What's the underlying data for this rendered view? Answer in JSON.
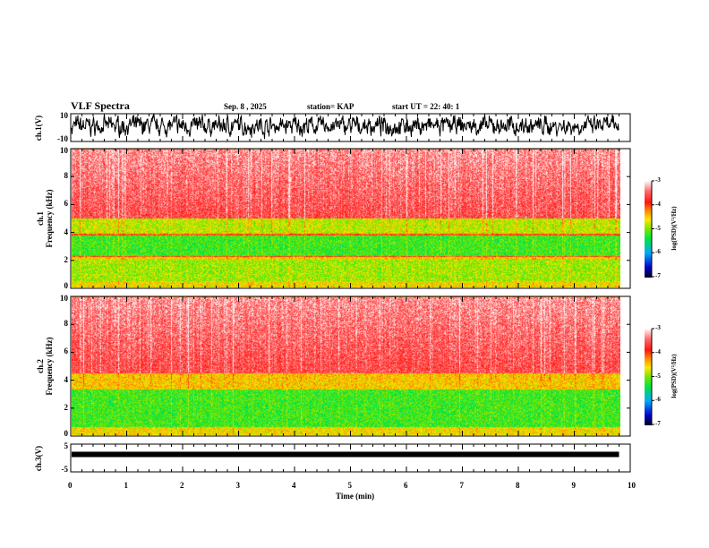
{
  "header": {
    "title": "VLF Spectra",
    "date": "Sep. 8  , 2025",
    "station": "station= KAP",
    "start": "start  UT  =   22: 40: 1"
  },
  "colors": {
    "trace": "#000000",
    "red": "#ff2020",
    "green": "#20e020"
  },
  "chart_data": [
    {
      "type": "line",
      "name": "ch1-waveform",
      "ylabel": "ch.1(V)",
      "ylim": [
        -10,
        10
      ],
      "yticks": [
        "10",
        "-10"
      ],
      "xlim": [
        0,
        10
      ],
      "data_end_min": 9.8
    },
    {
      "type": "heatmap",
      "name": "ch1-spectrogram",
      "ylabel": "ch.1\nFrequency  (kHz)",
      "ylim": [
        0,
        10
      ],
      "yticks": [
        "0",
        "2",
        "4",
        "6",
        "8",
        "10"
      ],
      "xlim": [
        0,
        10
      ],
      "colorbar": {
        "label": "log(PSD)(V²/Hz)",
        "range": [
          -7,
          -3
        ],
        "ticks": [
          "-3",
          "-4",
          "-5",
          "-6",
          "-7"
        ]
      },
      "bands_khz": [
        {
          "range": [
            0,
            0.5
          ],
          "level": -4.6
        },
        {
          "range": [
            0.5,
            2.0
          ],
          "level": -4.9
        },
        {
          "range": [
            2.2,
            2.3
          ],
          "level": -4.0
        },
        {
          "range": [
            2.3,
            3.8
          ],
          "level": -5.2
        },
        {
          "range": [
            3.8,
            3.9
          ],
          "level": -4.0
        },
        {
          "range": [
            4.0,
            5.0
          ],
          "level": -4.8
        },
        {
          "range": [
            5.0,
            10.0
          ],
          "level": -3.6
        }
      ]
    },
    {
      "type": "heatmap",
      "name": "ch2-spectrogram",
      "ylabel": "ch.2\nFrequency  (kHz)",
      "ylim": [
        0,
        10
      ],
      "yticks": [
        "0",
        "2",
        "4",
        "6",
        "8",
        "10"
      ],
      "xlim": [
        0,
        10
      ],
      "colorbar": {
        "label": "log(PSD)(V²/Hz)",
        "range": [
          -7,
          -3
        ],
        "ticks": [
          "-3",
          "-4",
          "-5",
          "-6",
          "-7"
        ]
      },
      "bands_khz": [
        {
          "range": [
            0,
            0.6
          ],
          "level": -4.6
        },
        {
          "range": [
            0.6,
            3.3
          ],
          "level": -5.2
        },
        {
          "range": [
            3.3,
            4.5
          ],
          "level": -4.5
        },
        {
          "range": [
            4.5,
            10.0
          ],
          "level": -3.6
        }
      ]
    },
    {
      "type": "line",
      "name": "ch3-waveform",
      "ylabel": "ch.3(V)",
      "ylim": [
        -5,
        5
      ],
      "yticks": [
        "5",
        "-5"
      ],
      "xlim": [
        0,
        10
      ],
      "level_v": 1.3,
      "data_end_min": 9.8
    }
  ],
  "xaxis": {
    "label": "Time  (min)",
    "ticks": [
      "0",
      "1",
      "2",
      "3",
      "4",
      "5",
      "6",
      "7",
      "8",
      "9",
      "10"
    ]
  }
}
